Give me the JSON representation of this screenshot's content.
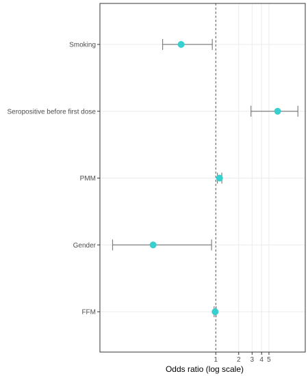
{
  "chart_data": {
    "type": "forest",
    "xlabel": "Odds ratio (log scale)",
    "x_scale": "log",
    "reference_line": 1,
    "x_ticks": [
      1,
      2,
      3,
      4,
      5
    ],
    "xlim": [
      0.03,
      15
    ],
    "grid": true,
    "colors": {
      "point": "#3ACFCF",
      "errorbar": "#7f7f7f",
      "reference": "#555555",
      "grid": "#ebebeb",
      "panel_border": "#333333"
    },
    "rows": [
      {
        "label": "Smoking",
        "estimate": 0.35,
        "lower": 0.2,
        "upper": 0.9
      },
      {
        "label": "Seropositive before first dose",
        "estimate": 6.5,
        "lower": 2.9,
        "upper": 12.0
      },
      {
        "label": "PMM",
        "estimate": 1.12,
        "lower": 1.05,
        "upper": 1.2
      },
      {
        "label": "Gender",
        "estimate": 0.15,
        "lower": 0.044,
        "upper": 0.88
      },
      {
        "label": "FFM",
        "estimate": 0.98,
        "lower": 0.95,
        "upper": 1.01
      }
    ]
  }
}
